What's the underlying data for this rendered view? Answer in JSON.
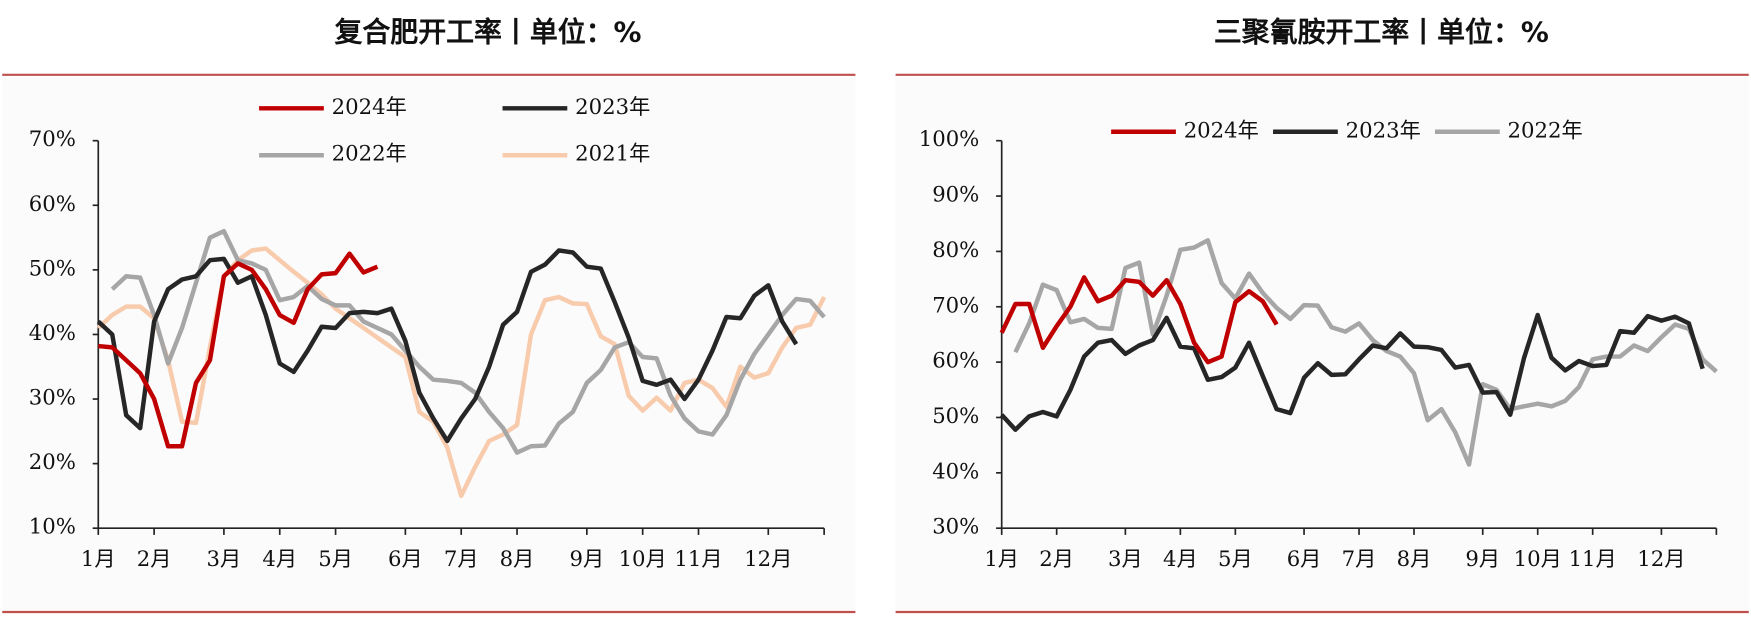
{
  "chart_data": [
    {
      "type": "line",
      "title": "复合肥开工率丨单位：%",
      "categories": [
        "1月",
        null,
        null,
        null,
        "2月",
        null,
        null,
        null,
        null,
        "3月",
        null,
        null,
        null,
        "4月",
        null,
        null,
        null,
        "5月",
        null,
        null,
        null,
        null,
        "6月",
        null,
        null,
        null,
        "7月",
        null,
        null,
        null,
        "8月",
        null,
        null,
        null,
        null,
        "9月",
        null,
        null,
        null,
        "10月",
        null,
        null,
        null,
        "11月",
        null,
        null,
        null,
        null,
        "12月",
        null,
        null,
        null,
        null
      ],
      "ylim": [
        10,
        70
      ],
      "yticks": [
        {
          "value": 10,
          "label": "10%"
        },
        {
          "value": 20,
          "label": "20%"
        },
        {
          "value": 30,
          "label": "30%"
        },
        {
          "value": 40,
          "label": "40%"
        },
        {
          "value": 50,
          "label": "50%"
        },
        {
          "value": 60,
          "label": "60%"
        },
        {
          "value": 70,
          "label": "70%"
        }
      ],
      "series": [
        {
          "name": "2024年",
          "color": "#c00000",
          "values": [
            38.2,
            38,
            36,
            34,
            30,
            22.7,
            22.7,
            32.5,
            36,
            49,
            51,
            50,
            47,
            43,
            41.8,
            47,
            49.3,
            49.5,
            52.5,
            49.6,
            50.5,
            null,
            null,
            null,
            null,
            null,
            null,
            null,
            null,
            null,
            null,
            null,
            null,
            null,
            null,
            null,
            null,
            null,
            null,
            null,
            null,
            null,
            null,
            null,
            null,
            null,
            null,
            null,
            null,
            null,
            null,
            null,
            null
          ]
        },
        {
          "name": "2023年",
          "color": "#262626",
          "values": [
            42,
            40,
            27.5,
            25.5,
            42,
            47,
            48.5,
            49,
            51.5,
            51.7,
            48,
            49,
            43,
            35.5,
            34.2,
            37.5,
            41.2,
            41,
            43.3,
            43.5,
            43.3,
            44,
            39,
            31,
            27,
            23.5,
            27,
            30,
            35,
            41.5,
            43.5,
            49.7,
            50.8,
            53,
            52.7,
            50.5,
            50.2,
            45,
            39.5,
            32.8,
            32.2,
            33,
            30,
            33,
            37.5,
            42.7,
            42.5,
            46,
            47.6,
            42,
            38.5,
            null,
            null
          ]
        },
        {
          "name": "2022年",
          "color": "#a6a6a6",
          "values": [
            null,
            47,
            49,
            48.8,
            43,
            35.5,
            41,
            48,
            55,
            56,
            51.5,
            51,
            50,
            45.3,
            45.8,
            47.5,
            45.5,
            44.5,
            44.5,
            42,
            41,
            40,
            37.5,
            35,
            33,
            32.8,
            32.5,
            31,
            28,
            25.5,
            21.7,
            22.7,
            22.8,
            26.2,
            28,
            32.5,
            34.5,
            38,
            38.8,
            36.5,
            36.3,
            30.5,
            27,
            25,
            24.5,
            27.5,
            33,
            37,
            40,
            43,
            45.5,
            45.2,
            42.7
          ]
        },
        {
          "name": "2021年",
          "color": "#f8cbad",
          "values": [
            41,
            43,
            44.3,
            44.3,
            42.5,
            36,
            26.5,
            26.3,
            38,
            49,
            51.5,
            53,
            53.3,
            51.5,
            49.7,
            48,
            46.2,
            44,
            42.5,
            41,
            39.5,
            38,
            36.5,
            28,
            26.5,
            22.5,
            15,
            19.5,
            23.5,
            24.5,
            26,
            40,
            45.3,
            45.8,
            44.8,
            44.7,
            39.7,
            38.5,
            30.5,
            28.2,
            30.2,
            28.2,
            32.5,
            33,
            31.7,
            28.8,
            35,
            33.3,
            34,
            38,
            41,
            41.5,
            45.8
          ]
        }
      ]
    },
    {
      "type": "line",
      "title": "三聚氰胺开工率丨单位：%",
      "categories": [
        "1月",
        null,
        null,
        null,
        "2月",
        null,
        null,
        null,
        null,
        "3月",
        null,
        null,
        null,
        "4月",
        null,
        null,
        null,
        "5月",
        null,
        null,
        null,
        null,
        "6月",
        null,
        null,
        null,
        "7月",
        null,
        null,
        null,
        "8月",
        null,
        null,
        null,
        null,
        "9月",
        null,
        null,
        null,
        "10月",
        null,
        null,
        null,
        "11月",
        null,
        null,
        null,
        null,
        "12月",
        null,
        null,
        null,
        null
      ],
      "ylim": [
        30,
        100
      ],
      "yticks": [
        {
          "value": 30,
          "label": "30%"
        },
        {
          "value": 40,
          "label": "40%"
        },
        {
          "value": 50,
          "label": "50%"
        },
        {
          "value": 60,
          "label": "60%"
        },
        {
          "value": 70,
          "label": "70%"
        },
        {
          "value": 80,
          "label": "80%"
        },
        {
          "value": 90,
          "label": "90%"
        },
        {
          "value": 100,
          "label": "100%"
        }
      ],
      "series": [
        {
          "name": "2024年",
          "color": "#c00000",
          "values": [
            65.3,
            70.5,
            70.5,
            62.6,
            66.5,
            70,
            75.3,
            71,
            72,
            74.8,
            74.5,
            72,
            74.8,
            70.5,
            63.5,
            60,
            61,
            70.8,
            72.8,
            71,
            66.8,
            null,
            null,
            null,
            null,
            null,
            null,
            null,
            null,
            null,
            null,
            null,
            null,
            null,
            null,
            null,
            null,
            null,
            null,
            null,
            null,
            null,
            null,
            null,
            null,
            null,
            null,
            null,
            null,
            null,
            null,
            null,
            null
          ]
        },
        {
          "name": "2023年",
          "color": "#262626",
          "values": [
            50.5,
            47.8,
            50.2,
            51,
            50.2,
            55,
            61,
            63.5,
            64,
            61.5,
            63,
            64,
            68,
            62.8,
            62.5,
            56.8,
            57.3,
            59,
            63.5,
            57.5,
            51.5,
            50.8,
            57.2,
            59.8,
            57.7,
            57.8,
            60.5,
            63,
            62.5,
            65.2,
            62.8,
            62.7,
            62.2,
            59,
            59.5,
            54.5,
            54.6,
            50.5,
            60.7,
            68.5,
            60.8,
            58.5,
            60.2,
            59.3,
            59.5,
            65.6,
            65.3,
            68.3,
            67.5,
            68.2,
            67,
            58.8,
            null
          ]
        },
        {
          "name": "2022年",
          "color": "#a6a6a6",
          "values": [
            null,
            61.8,
            67,
            74,
            73,
            67.2,
            67.8,
            66.2,
            66,
            77,
            78,
            65,
            72,
            80.3,
            80.7,
            82,
            74.3,
            71.5,
            76,
            72.5,
            69.8,
            67.8,
            70.3,
            70.2,
            66.3,
            65.5,
            67,
            64,
            62,
            61,
            58,
            49.5,
            51.5,
            47.3,
            41.5,
            56,
            55,
            51.5,
            52,
            52.5,
            52,
            53,
            55.5,
            60.5,
            61,
            61,
            63,
            62,
            64.5,
            66.8,
            66,
            60.5,
            58.3
          ]
        }
      ]
    }
  ]
}
